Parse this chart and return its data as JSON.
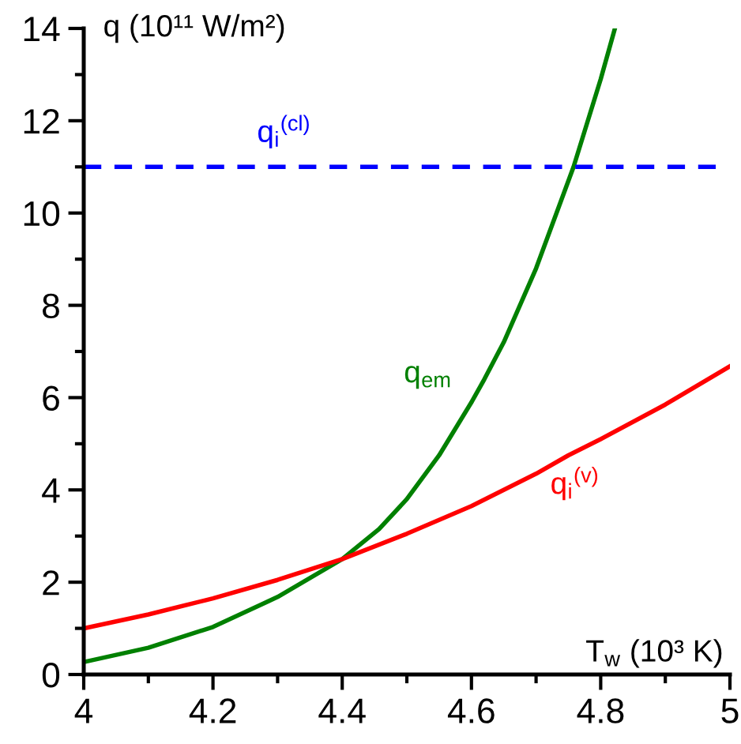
{
  "chart_data": {
    "type": "line",
    "xlabel": "T$_{w}$ (10³ K)",
    "ylabel": "q (10¹¹ W/m²)",
    "xlim": [
      4,
      5
    ],
    "ylim": [
      0,
      14
    ],
    "xticks": [
      4,
      {
        "value": 4.1,
        "label": null
      },
      4.2,
      {
        "value": 4.3,
        "label": null
      },
      4.4,
      {
        "value": 4.5,
        "label": null
      },
      4.6,
      {
        "value": 4.7,
        "label": null
      },
      4.8,
      {
        "value": 4.9,
        "label": null
      },
      5
    ],
    "yticks": [
      0,
      {
        "value": 1,
        "label": null
      },
      2,
      {
        "value": 3,
        "label": null
      },
      4,
      {
        "value": 5,
        "label": null
      },
      6,
      {
        "value": 7,
        "label": null
      },
      8,
      {
        "value": 9,
        "label": null
      },
      10,
      {
        "value": 11,
        "label": null
      },
      12,
      {
        "value": 13,
        "label": null
      },
      14
    ],
    "grid": false,
    "legend": false,
    "marker": "none",
    "line_style": "solid",
    "series": [
      {
        "name": "q$_{em}$",
        "color": "#008000",
        "x": [
          4.0,
          4.1,
          4.2,
          4.3,
          4.4,
          4.457,
          4.5,
          4.55,
          4.6,
          4.62,
          4.65,
          4.7,
          4.758,
          4.8,
          4.822
        ],
        "values": [
          0.27,
          0.58,
          1.03,
          1.68,
          2.5,
          3.15,
          3.8,
          4.75,
          5.9,
          6.4,
          7.2,
          8.8,
          11,
          12.9,
          14
        ]
      },
      {
        "name": "q$_{i}$$^{(v)}$",
        "color": "#ff0000",
        "x": [
          4.0,
          4.1,
          4.2,
          4.3,
          4.4,
          4.5,
          4.6,
          4.7,
          4.75,
          4.8,
          4.9,
          5.0
        ],
        "values": [
          1.0,
          1.3,
          1.65,
          2.05,
          2.5,
          3.05,
          3.65,
          4.35,
          4.75,
          5.1,
          5.85,
          6.68
        ]
      }
    ],
    "ref_lines": [
      {
        "axis": "y",
        "value": 11,
        "label": "q$_{i}$$^{(cl)}$",
        "color": "#0000ff",
        "line_style": "dashed"
      }
    ]
  }
}
